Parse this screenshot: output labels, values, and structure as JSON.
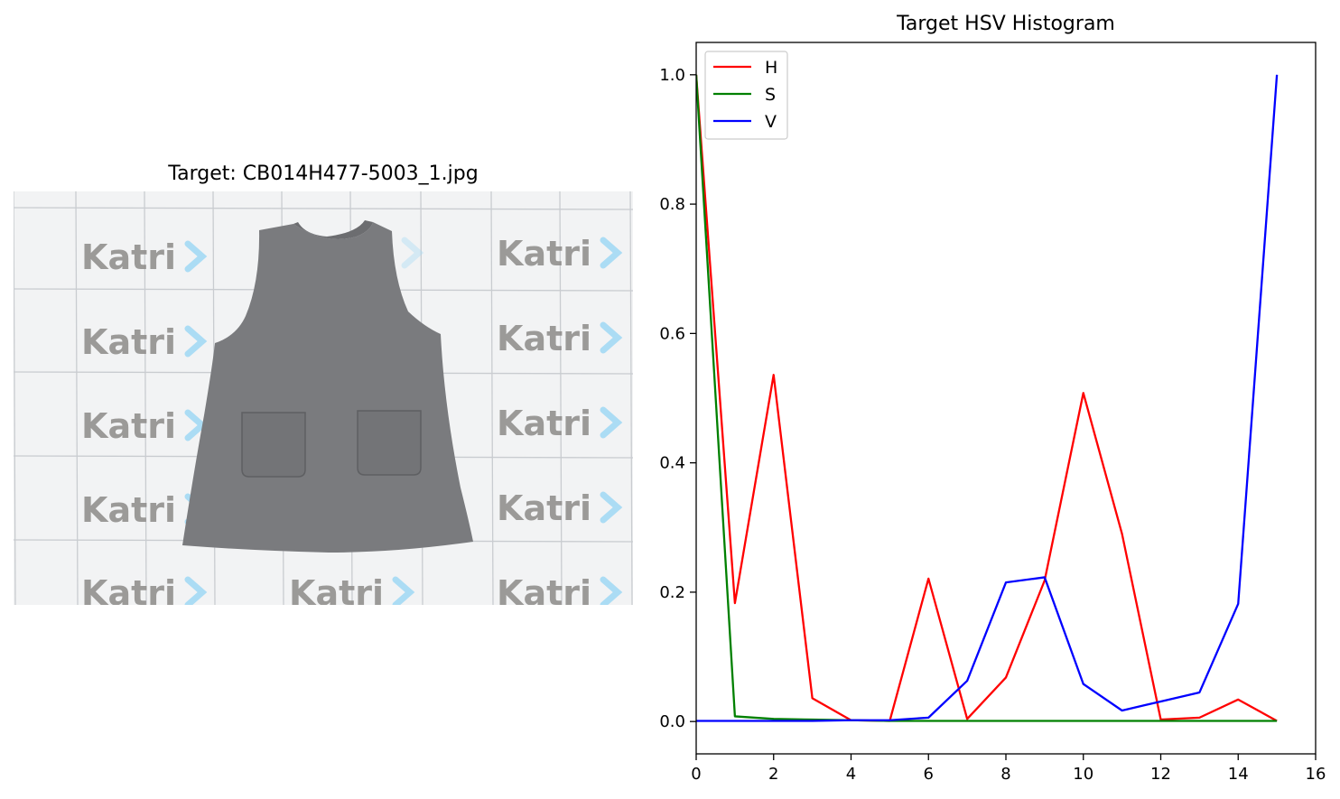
{
  "left_panel": {
    "title": "Target: CB014H477-5003_1.jpg",
    "photo": {
      "background_color": "#f2f3f4",
      "grid_color": "#c9ccd0",
      "garment_color": "#7a7b7e",
      "garment_shadow": "#666769",
      "watermark_text": "Katri",
      "watermark_color": "#8d8b89",
      "chevron_color": "#9fd8f5"
    }
  },
  "chart_data": {
    "type": "line",
    "title": "Target HSV Histogram",
    "xlabel": "",
    "ylabel": "",
    "xlim": [
      0,
      16
    ],
    "ylim": [
      -0.05,
      1.05
    ],
    "x_ticks": [
      0,
      2,
      4,
      6,
      8,
      10,
      12,
      14,
      16
    ],
    "x_tick_labels": [
      "0",
      "2",
      "4",
      "6",
      "8",
      "10",
      "12",
      "14",
      "16"
    ],
    "y_ticks": [
      0.0,
      0.2,
      0.4,
      0.6,
      0.8,
      1.0
    ],
    "y_tick_labels": [
      "0.0",
      "0.2",
      "0.4",
      "0.6",
      "0.8",
      "1.0"
    ],
    "grid": false,
    "legend_position": "top-left",
    "x": [
      0,
      1,
      2,
      3,
      4,
      5,
      6,
      7,
      8,
      9,
      10,
      11,
      12,
      13,
      14,
      15
    ],
    "series": [
      {
        "name": "H",
        "color": "#ff0000",
        "values": [
          1.0,
          0.183,
          0.536,
          0.036,
          0.002,
          0.001,
          0.221,
          0.004,
          0.068,
          0.218,
          0.508,
          0.29,
          0.003,
          0.006,
          0.034,
          0.001
        ]
      },
      {
        "name": "S",
        "color": "#008000",
        "values": [
          1.0,
          0.008,
          0.004,
          0.003,
          0.002,
          0.001,
          0.001,
          0.001,
          0.001,
          0.001,
          0.001,
          0.001,
          0.001,
          0.001,
          0.001,
          0.001
        ]
      },
      {
        "name": "V",
        "color": "#0000ff",
        "values": [
          0.001,
          0.001,
          0.001,
          0.001,
          0.002,
          0.002,
          0.006,
          0.063,
          0.215,
          0.223,
          0.058,
          0.017,
          0.031,
          0.045,
          0.182,
          1.0
        ]
      }
    ]
  }
}
